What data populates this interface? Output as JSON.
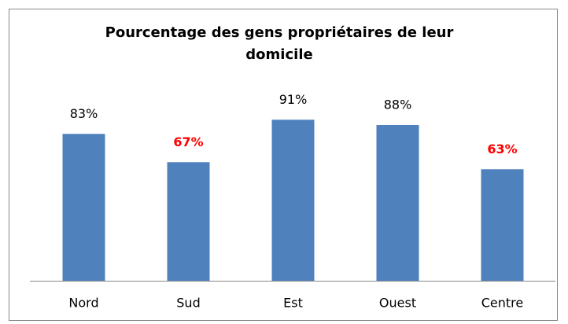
{
  "chart_data": {
    "type": "bar",
    "title": "Pourcentage des gens propriétaires de leur domicile",
    "categories": [
      "Nord",
      "Sud",
      "Est",
      "Ouest",
      "Centre"
    ],
    "values": [
      83,
      67,
      91,
      88,
      63
    ],
    "value_labels": [
      "83%",
      "67%",
      "91%",
      "88%",
      "63%"
    ],
    "value_label_colors": [
      "#000000",
      "#ff0000",
      "#000000",
      "#000000",
      "#ff0000"
    ],
    "value_label_weights": [
      "normal",
      "bold",
      "normal",
      "normal",
      "bold"
    ],
    "color": "#4f81bd"
  }
}
